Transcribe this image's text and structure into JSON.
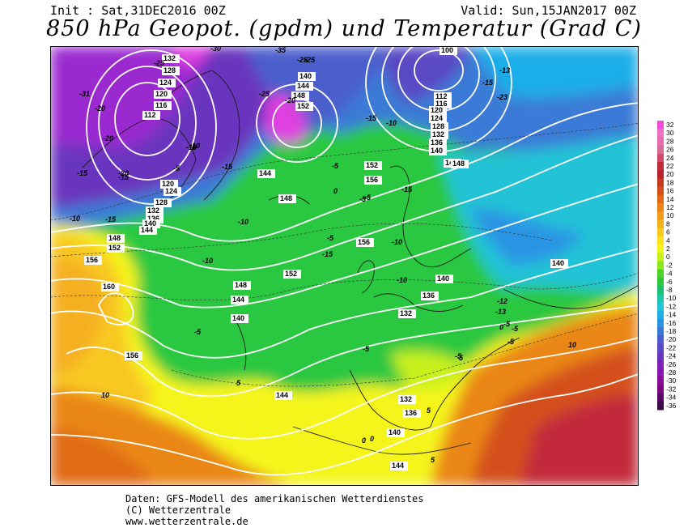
{
  "header": {
    "init": "Init : Sat,31DEC2016 00Z",
    "valid": "Valid: Sun,15JAN2017 00Z",
    "title": "850 hPa Geopot. (gpdm) und Temperatur (Grad C)"
  },
  "legend": {
    "ticks": [
      "32",
      "30",
      "28",
      "26",
      "24",
      "22",
      "20",
      "18",
      "16",
      "14",
      "12",
      "10",
      "8",
      "6",
      "4",
      "2",
      "0",
      "-2",
      "-4",
      "-6",
      "-8",
      "-10",
      "-12",
      "-14",
      "-16",
      "-18",
      "-20",
      "-22",
      "-24",
      "-26",
      "-28",
      "-30",
      "-32",
      "-34",
      "-36"
    ],
    "colors": [
      "#f04cd9",
      "#f070c8",
      "#e66fb4",
      "#d86a9a",
      "#cc4b6b",
      "#c22a3a",
      "#b8202a",
      "#c43a1e",
      "#d44f1a",
      "#e06a18",
      "#ea8616",
      "#f09a16",
      "#f5b020",
      "#f8c823",
      "#ffe01e",
      "#f5f51e",
      "#c8f01e",
      "#8ee61e",
      "#4cd22d",
      "#2ac841",
      "#20c070",
      "#20c6a6",
      "#22c3d6",
      "#1eaee8",
      "#2a94e4",
      "#3a7ad6",
      "#4c5ecc",
      "#5a48c4",
      "#6a34be",
      "#7a22b8",
      "#8a14b0",
      "#8a0a9a",
      "#7a0682",
      "#5c0866",
      "#3a0a4c"
    ]
  },
  "map": {
    "geopotential_labels": [
      {
        "text": "132",
        "loc": "greenland-north"
      },
      {
        "text": "128",
        "loc": "greenland"
      },
      {
        "text": "124",
        "loc": "greenland"
      },
      {
        "text": "120",
        "loc": "greenland"
      },
      {
        "text": "116",
        "loc": "greenland"
      },
      {
        "text": "112",
        "loc": "greenland-low"
      },
      {
        "text": "140",
        "loc": "svalbard"
      },
      {
        "text": "144",
        "loc": "svalbard"
      },
      {
        "text": "148",
        "loc": "svalbard"
      },
      {
        "text": "152",
        "loc": "svalbard-high"
      },
      {
        "text": "100",
        "loc": "barents-low"
      },
      {
        "text": "112",
        "loc": "barents"
      },
      {
        "text": "116",
        "loc": "barents"
      },
      {
        "text": "120",
        "loc": "barents"
      },
      {
        "text": "124",
        "loc": "barents"
      },
      {
        "text": "128",
        "loc": "barents"
      },
      {
        "text": "132",
        "loc": "barents"
      },
      {
        "text": "136",
        "loc": "barents"
      },
      {
        "text": "140",
        "loc": "barents"
      },
      {
        "text": "144",
        "loc": "scandinavia"
      },
      {
        "text": "148",
        "loc": "scandinavia"
      },
      {
        "text": "152",
        "loc": "norwegian-sea"
      },
      {
        "text": "156",
        "loc": "norwegian-sea"
      },
      {
        "text": "144",
        "loc": "iceland"
      },
      {
        "text": "148",
        "loc": "iceland"
      },
      {
        "text": "120",
        "loc": "labrador"
      },
      {
        "text": "124",
        "loc": "labrador"
      },
      {
        "text": "128",
        "loc": "labrador"
      },
      {
        "text": "132",
        "loc": "labrador"
      },
      {
        "text": "136",
        "loc": "labrador"
      },
      {
        "text": "140",
        "loc": "labrador"
      },
      {
        "text": "144",
        "loc": "labrador"
      },
      {
        "text": "148",
        "loc": "atlantic-west"
      },
      {
        "text": "152",
        "loc": "atlantic-west"
      },
      {
        "text": "156",
        "loc": "atlantic-west"
      },
      {
        "text": "160",
        "loc": "atlantic-southwest"
      },
      {
        "text": "156",
        "loc": "atlantic-south"
      },
      {
        "text": "156",
        "loc": "north-sea"
      },
      {
        "text": "152",
        "loc": "atlantic-central"
      },
      {
        "text": "148",
        "loc": "atlantic-central"
      },
      {
        "text": "144",
        "loc": "atlantic-central"
      },
      {
        "text": "140",
        "loc": "atlantic-central"
      },
      {
        "text": "140",
        "loc": "central-europe"
      },
      {
        "text": "136",
        "loc": "central-europe"
      },
      {
        "text": "132",
        "loc": "central-europe"
      },
      {
        "text": "140",
        "loc": "russia"
      },
      {
        "text": "132",
        "loc": "mediterranean"
      },
      {
        "text": "136",
        "loc": "mediterranean"
      },
      {
        "text": "140",
        "loc": "mediterranean"
      },
      {
        "text": "144",
        "loc": "iberia-south"
      },
      {
        "text": "144",
        "loc": "north-africa"
      }
    ],
    "temperature_labels": [
      "-30",
      "-25",
      "-25",
      "-35",
      "-25",
      "-31",
      "-20",
      "-25",
      "-20",
      "-15",
      "-15",
      "-15",
      "-13",
      "-23",
      "-20",
      "-15",
      "-10",
      "-15",
      "-10",
      "-5",
      "-5",
      "-10",
      "-5",
      "-5",
      "-15",
      "-5",
      "-15",
      "-10",
      "-10",
      "-10",
      "-5",
      "-5",
      "-10",
      "-12",
      "-13",
      "-5",
      "-5",
      "0",
      "-5",
      "5",
      "-5",
      "0",
      "10",
      "5",
      "0",
      "5",
      "5",
      "-5",
      "0",
      "-10",
      "-15",
      "-20",
      "10"
    ]
  },
  "footer": {
    "line1": "Daten: GFS-Modell des amerikanischen Wetterdienstes",
    "line2": "(C) Wetterzentrale",
    "line3": "www.wetterzentrale.de"
  }
}
